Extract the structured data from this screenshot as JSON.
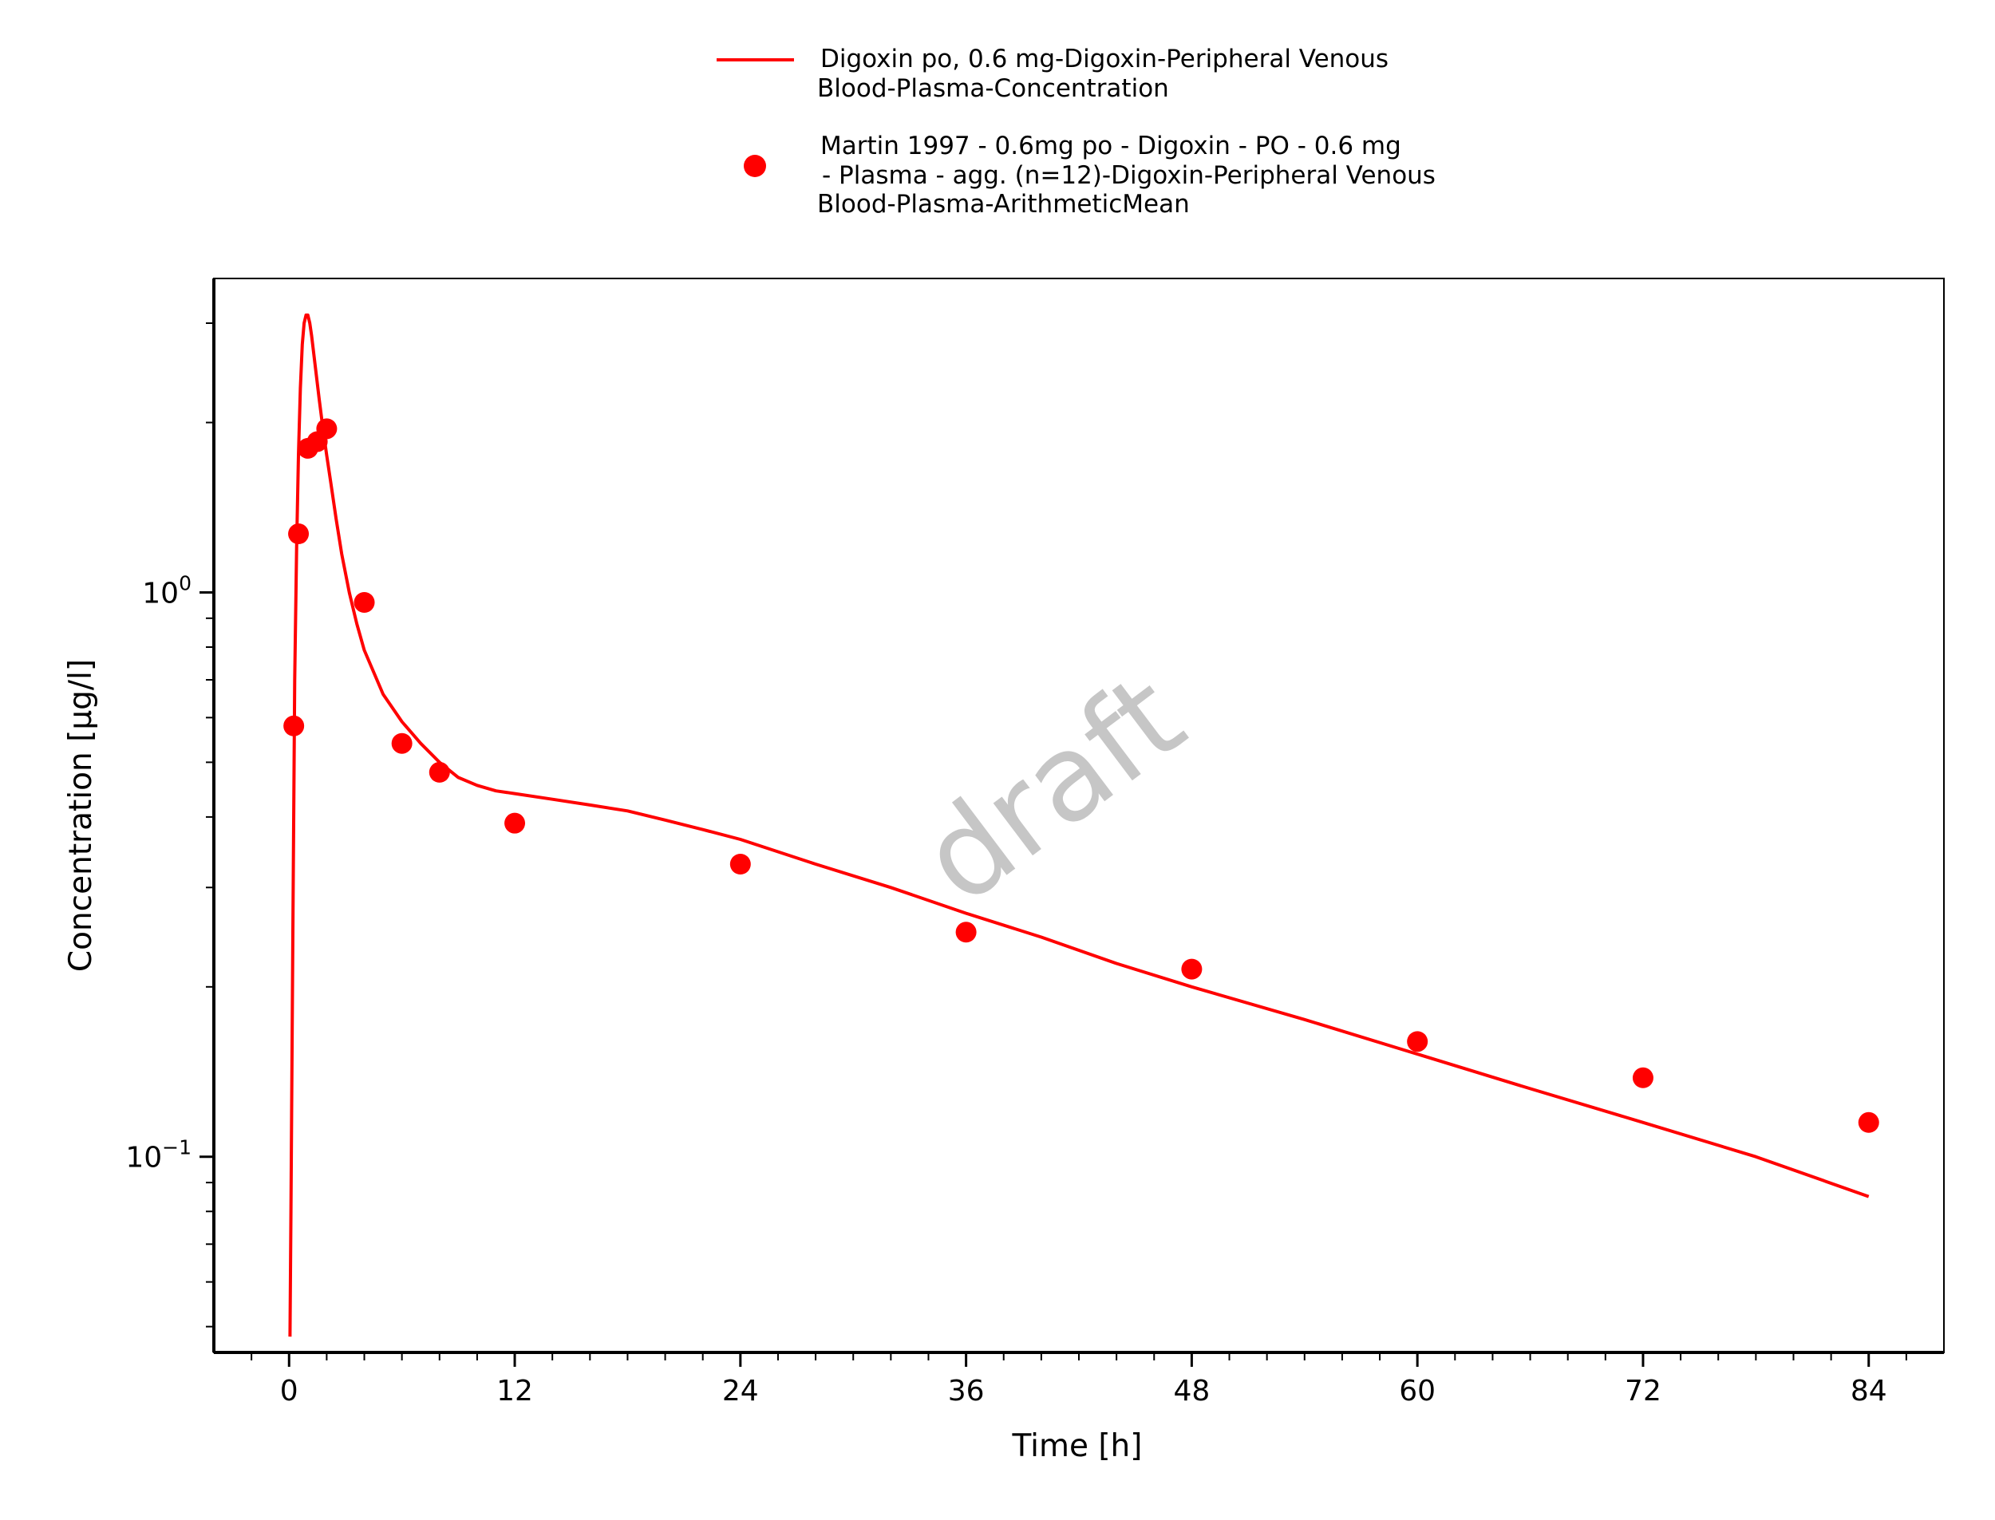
{
  "watermark": "draft",
  "chart_data": {
    "type": "line",
    "x_axis": {
      "label": "Time [h]",
      "range": [
        -4,
        88
      ],
      "ticks": [
        0,
        12,
        24,
        36,
        48,
        60,
        72,
        84
      ],
      "tick_labels": [
        "0",
        "12",
        "24",
        "36",
        "48",
        "60",
        "72",
        "84"
      ]
    },
    "y_axis": {
      "label": "Concentration [µg/l]",
      "scale": "log",
      "range": [
        0.045,
        3.6
      ],
      "ticks": [
        {
          "value": 1.0,
          "base": "10",
          "exponent": "0"
        },
        {
          "value": 0.1,
          "base": "10",
          "exponent": "−1"
        }
      ]
    },
    "grid": false,
    "legend_position": "top",
    "series": [
      {
        "name": "Digoxin po, 0.6 mg-Digoxin-Peripheral Venous Blood-Plasma-Concentration",
        "legend_lines": [
          "Digoxin po, 0.6 mg-Digoxin-Peripheral Venous",
          "Blood-Plasma-Concentration"
        ],
        "type": "line",
        "color": "#ff0000",
        "x": [
          0.05,
          0.1,
          0.2,
          0.3,
          0.4,
          0.5,
          0.6,
          0.7,
          0.8,
          0.9,
          1.0,
          1.1,
          1.2,
          1.4,
          1.6,
          1.8,
          2.0,
          2.2,
          2.5,
          2.8,
          3.2,
          3.6,
          4.0,
          5.0,
          6.0,
          7.0,
          8.0,
          9.0,
          10.0,
          11.0,
          12.0,
          14.0,
          16.0,
          18.0,
          20.0,
          22.0,
          24.0,
          28.0,
          32.0,
          36.0,
          40.0,
          44.0,
          48.0,
          54.0,
          60.0,
          66.0,
          72.0,
          78.0,
          84.0
        ],
        "y": [
          0.048,
          0.08,
          0.25,
          0.7,
          1.2,
          1.75,
          2.3,
          2.75,
          3.0,
          3.1,
          3.1,
          3.0,
          2.85,
          2.5,
          2.2,
          1.95,
          1.75,
          1.58,
          1.35,
          1.17,
          1.0,
          0.88,
          0.79,
          0.66,
          0.59,
          0.54,
          0.5,
          0.47,
          0.455,
          0.445,
          0.44,
          0.43,
          0.42,
          0.41,
          0.395,
          0.38,
          0.365,
          0.33,
          0.3,
          0.27,
          0.245,
          0.22,
          0.2,
          0.175,
          0.152,
          0.132,
          0.115,
          0.1,
          0.085
        ]
      },
      {
        "name": "Martin 1997 - 0.6mg po - Digoxin - PO - 0.6 mg - Plasma - agg. (n=12)-Digoxin-Peripheral Venous Blood-Plasma-ArithmeticMean",
        "legend_lines": [
          "Martin 1997 - 0.6mg po - Digoxin - PO - 0.6 mg",
          "- Plasma - agg. (n=12)-Digoxin-Peripheral Venous",
          "Blood-Plasma-ArithmeticMean"
        ],
        "type": "scatter",
        "color": "#ff0000",
        "x": [
          0.25,
          0.5,
          1.0,
          1.5,
          2.0,
          4.0,
          6.0,
          8.0,
          12.0,
          24.0,
          36.0,
          48.0,
          60.0,
          72.0,
          84.0
        ],
        "y": [
          0.58,
          1.27,
          1.8,
          1.85,
          1.95,
          0.96,
          0.54,
          0.48,
          0.39,
          0.33,
          0.25,
          0.215,
          0.16,
          0.138,
          0.115
        ]
      }
    ]
  }
}
